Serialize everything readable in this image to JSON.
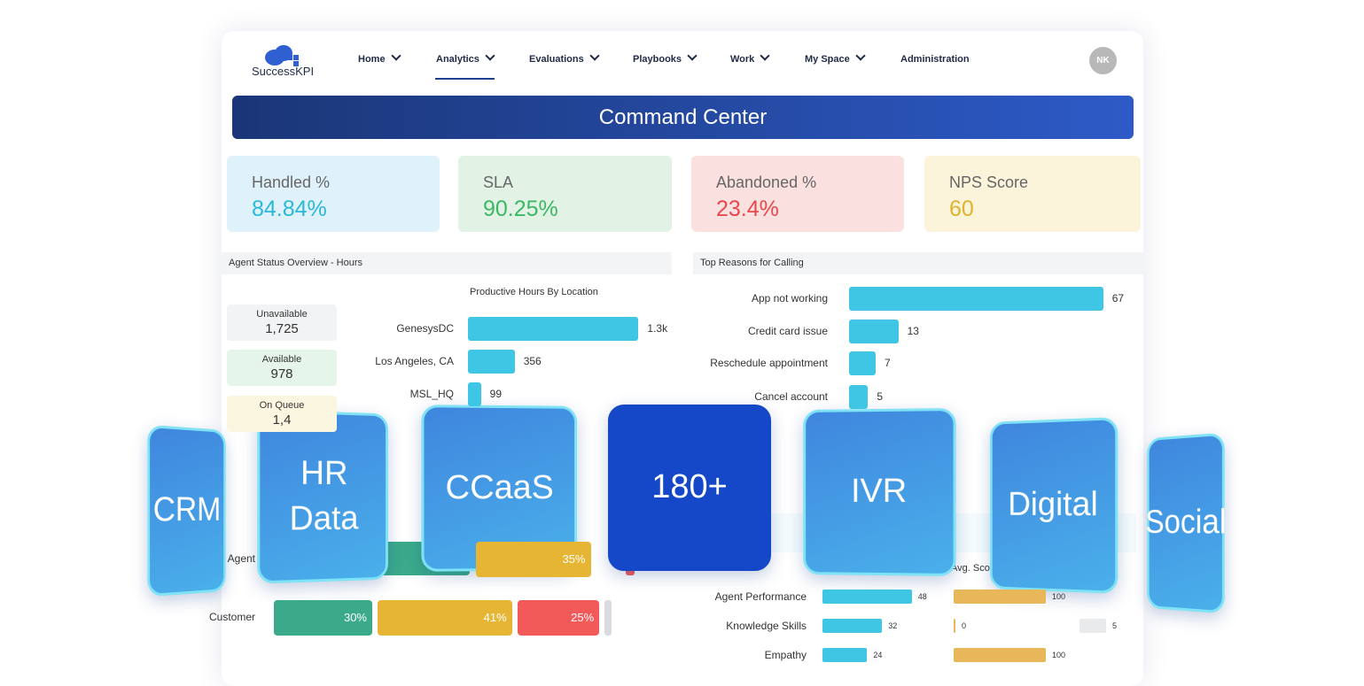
{
  "nav": {
    "logo": "SuccessKPI",
    "items": [
      "Home",
      "Analytics",
      "Evaluations",
      "Playbooks",
      "Work",
      "My Space",
      "Administration"
    ],
    "avatar": "NK"
  },
  "banner": {
    "title": "Command Center"
  },
  "kpis": [
    {
      "label": "Handled %",
      "value": "84.84%"
    },
    {
      "label": "SLA",
      "value": "90.25%"
    },
    {
      "label": "Abandoned %",
      "value": "23.4%"
    },
    {
      "label": "NPS Score",
      "value": "60"
    }
  ],
  "agent_status": {
    "title": "Agent Status Overview - Hours",
    "statuses": [
      {
        "label": "Unavailable",
        "value": "1,725"
      },
      {
        "label": "Available",
        "value": "978"
      },
      {
        "label": "On Queue",
        "value": "1,4"
      }
    ],
    "chart_title": "Productive Hours By Location",
    "bars": [
      {
        "label": "GenesysDC",
        "value": 1300,
        "value_label": "1.3k"
      },
      {
        "label": "Los Angeles, CA",
        "value": 356
      },
      {
        "label": "MSL_HQ",
        "value": 99
      }
    ]
  },
  "top_reasons": {
    "title": "Top Reasons for Calling",
    "bars": [
      {
        "label": "App not working",
        "value": 67
      },
      {
        "label": "Credit card issue",
        "value": 13
      },
      {
        "label": "Reschedule appointment",
        "value": 7
      },
      {
        "label": "Cancel account",
        "value": 5
      }
    ]
  },
  "call_breakdown": {
    "rows": [
      {
        "label": "Agent",
        "segments": [
          {
            "value": 35,
            "value_label": "35%"
          }
        ]
      },
      {
        "label": "Customer",
        "segments": [
          {
            "value": 30,
            "value_label": "30%"
          },
          {
            "value": 41,
            "value_label": "41%"
          },
          {
            "value": 25,
            "value_label": "25%"
          }
        ]
      }
    ]
  },
  "skills": {
    "header": "Avg. Sco",
    "rows": [
      {
        "label": "Agent Performance",
        "scores": [
          48,
          100
        ]
      },
      {
        "label": "Knowledge Skills",
        "scores": [
          32,
          0,
          5
        ]
      },
      {
        "label": "Empathy",
        "scores": [
          24,
          100
        ]
      }
    ]
  },
  "tiles": [
    "CRM",
    "HR Data",
    "CCaaS",
    "180+",
    "IVR",
    "Digital",
    "Social"
  ]
}
